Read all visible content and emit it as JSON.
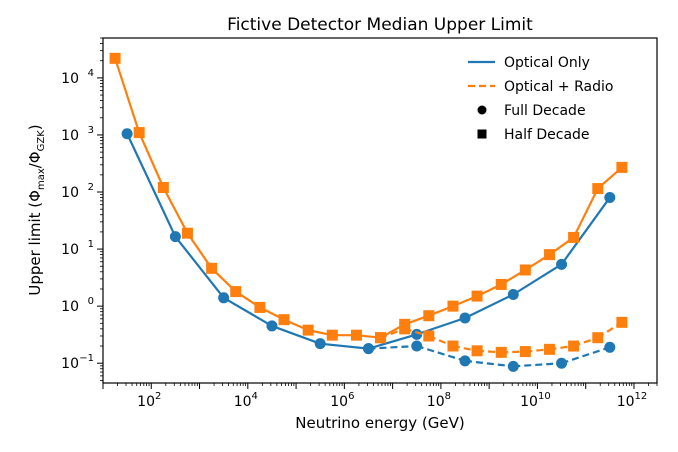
{
  "chart_data": {
    "type": "line",
    "title": "Fictive Detector Median Upper Limit",
    "xlabel": "Neutrino energy (GeV)",
    "ylabel": "Upper limit (Φmax/ΦGZK)",
    "xscale": "log",
    "yscale": "log",
    "xlim": [
      10,
      3000000000000.0
    ],
    "ylim": [
      0.045,
      50000
    ],
    "grid": false,
    "legend_position": "top-right",
    "xticks": [
      {
        "value": 100,
        "base": "10",
        "exp": "2"
      },
      {
        "value": 10000,
        "base": "10",
        "exp": "4"
      },
      {
        "value": 1000000,
        "base": "10",
        "exp": "6"
      },
      {
        "value": 100000000,
        "base": "10",
        "exp": "8"
      },
      {
        "value": 10000000000,
        "base": "10",
        "exp": "10"
      },
      {
        "value": 1000000000000,
        "base": "10",
        "exp": "12"
      }
    ],
    "yticks": [
      {
        "value": 0.1,
        "base": "10",
        "exp": "−1"
      },
      {
        "value": 1,
        "base": "10",
        "exp": "0"
      },
      {
        "value": 10,
        "base": "10",
        "exp": "1"
      },
      {
        "value": 100,
        "base": "10",
        "exp": "2"
      },
      {
        "value": 1000,
        "base": "10",
        "exp": "3"
      },
      {
        "value": 10000,
        "base": "10",
        "exp": "4"
      }
    ],
    "colors": {
      "optical_only": "#1f77b4",
      "optical_radio": "#ff7f0e"
    },
    "legend": [
      {
        "label": "Optical Only",
        "symbol": "solid-line",
        "color": "#1f77b4"
      },
      {
        "label": "Optical + Radio",
        "symbol": "dashed-line",
        "color": "#ff7f0e"
      },
      {
        "label": "Full Decade",
        "symbol": "circle",
        "color": "#000000"
      },
      {
        "label": "Half Decade",
        "symbol": "square",
        "color": "#000000"
      }
    ],
    "series": [
      {
        "name": "Optical Only",
        "binning": "Full Decade",
        "color": "#1f77b4",
        "marker": "circle",
        "x": [
          31.6,
          316,
          3160,
          31600,
          316000,
          3160000,
          31600000,
          316000000,
          3160000000,
          31600000000,
          316000000000
        ],
        "y": [
          1050,
          16.5,
          1.4,
          0.45,
          0.22,
          0.18,
          0.32,
          0.62,
          1.6,
          5.4,
          80
        ],
        "line_styles": [
          "solid",
          "solid",
          "solid",
          "solid",
          "solid",
          "solid",
          "solid",
          "solid",
          "solid",
          "solid"
        ]
      },
      {
        "name": "Optical Only",
        "binning": "Full Decade",
        "color": "#1f77b4",
        "marker": "circle",
        "x": [
          3160000,
          31600000,
          316000000,
          3160000000,
          31600000000,
          316000000000
        ],
        "y": [
          0.18,
          0.2,
          0.11,
          0.088,
          0.1,
          0.19
        ],
        "line_styles": [
          "dashed",
          "dashed",
          "dashed",
          "dashed",
          "dashed"
        ]
      },
      {
        "name": "Optical + Radio",
        "binning": "Half Decade",
        "color": "#ff7f0e",
        "marker": "square",
        "x": [
          17.8,
          56.2,
          178,
          562,
          1780,
          5620,
          17800,
          56200,
          178000,
          562000,
          1780000,
          5620000,
          17800000,
          56200000,
          178000000,
          562000000,
          1780000000,
          5620000000,
          17800000000,
          56200000000,
          178000000000,
          562000000000
        ],
        "y": [
          22000,
          1100,
          120,
          19,
          4.6,
          1.8,
          0.95,
          0.58,
          0.38,
          0.31,
          0.31,
          0.28,
          0.48,
          0.68,
          1.0,
          1.5,
          2.4,
          4.3,
          8.0,
          16,
          115,
          270
        ],
        "line_styles": [
          "solid",
          "solid",
          "solid",
          "solid",
          "solid",
          "solid",
          "solid",
          "solid",
          "solid",
          "solid",
          "solid",
          "solid",
          "solid",
          "solid",
          "solid",
          "solid",
          "solid",
          "solid",
          "solid",
          "solid",
          "solid"
        ]
      },
      {
        "name": "Optical + Radio",
        "binning": "Half Decade",
        "color": "#ff7f0e",
        "marker": "square",
        "x": [
          5620000,
          17800000,
          56200000,
          178000000,
          562000000,
          1780000000,
          5620000000,
          17800000000,
          56200000000,
          178000000000,
          562000000000
        ],
        "y": [
          0.28,
          0.4,
          0.3,
          0.2,
          0.165,
          0.155,
          0.16,
          0.175,
          0.2,
          0.28,
          0.52
        ],
        "line_styles": [
          "dashed",
          "dashed",
          "dashed",
          "dashed",
          "dashed",
          "dashed",
          "dashed",
          "dashed",
          "dashed",
          "dashed"
        ]
      }
    ]
  }
}
